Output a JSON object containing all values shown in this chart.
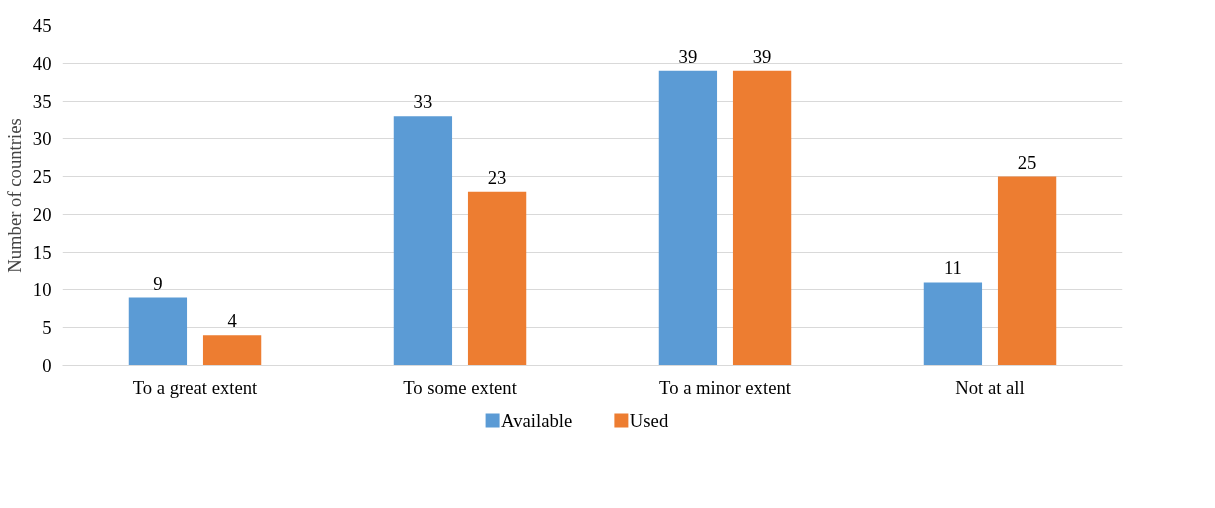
{
  "chart_data": {
    "type": "bar",
    "ylabel": "Number of countries",
    "categories": [
      "To a great extent",
      "To some extent",
      "To a minor extent",
      "Not at all"
    ],
    "series": [
      {
        "name": "Available",
        "color": "#5b9bd5",
        "values": [
          9,
          33,
          39,
          11
        ]
      },
      {
        "name": "Used",
        "color": "#ed7d31",
        "values": [
          4,
          23,
          39,
          25
        ]
      }
    ],
    "ylim": [
      0,
      45
    ],
    "yticks": [
      0,
      5,
      10,
      15,
      20,
      25,
      30,
      35,
      40,
      45
    ],
    "grid": "y",
    "legend": "bottom",
    "data_labels": true
  }
}
